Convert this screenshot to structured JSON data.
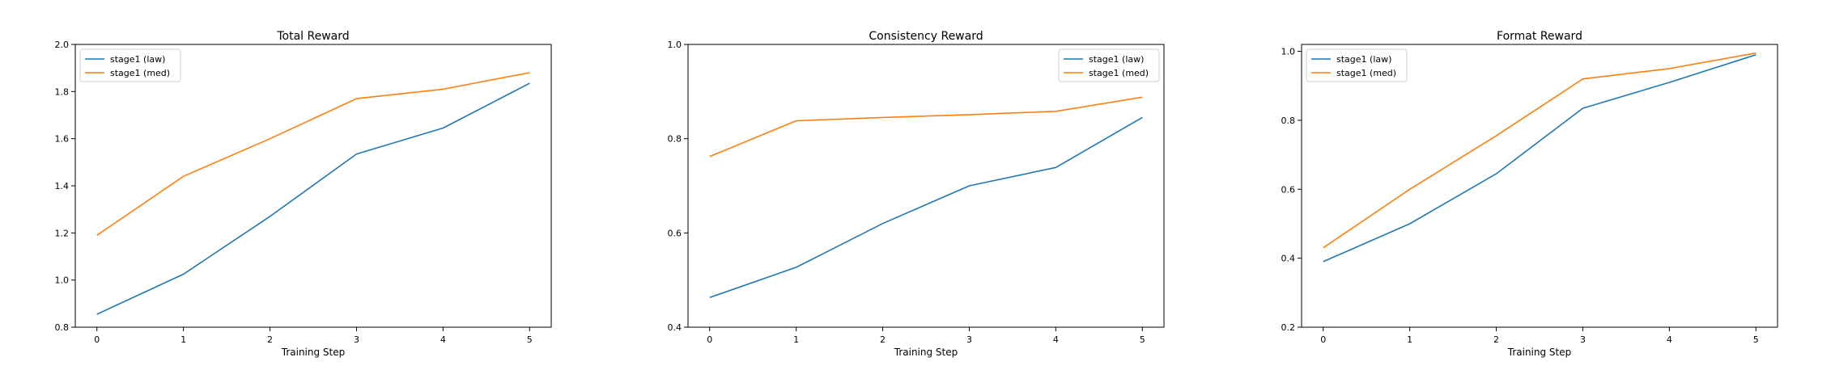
{
  "chart_data": [
    {
      "type": "line",
      "title": "Total Reward",
      "xlabel": "Training Step",
      "ylabel": "",
      "x": [
        0,
        1,
        2,
        3,
        4,
        5
      ],
      "xticks": [
        "0",
        "1",
        "2",
        "3",
        "4",
        "5"
      ],
      "xlim": [
        -0.25,
        5.25
      ],
      "ylim": [
        0.8,
        2.0
      ],
      "yticks": [
        "0.8",
        "1.0",
        "1.2",
        "1.4",
        "1.6",
        "1.8",
        "2.0"
      ],
      "grid": false,
      "legend_position": "top-left",
      "series": [
        {
          "name": "stage1 (law)",
          "color": "#1f77b4",
          "values": [
            0.855,
            1.025,
            1.27,
            1.535,
            1.645,
            1.835
          ]
        },
        {
          "name": "stage1 (med)",
          "color": "#ff7f0e",
          "values": [
            1.19,
            1.44,
            1.6,
            1.77,
            1.81,
            1.88
          ]
        }
      ]
    },
    {
      "type": "line",
      "title": "Consistency Reward",
      "xlabel": "Training Step",
      "ylabel": "",
      "x": [
        0,
        1,
        2,
        3,
        4,
        5
      ],
      "xticks": [
        "0",
        "1",
        "2",
        "3",
        "4",
        "5"
      ],
      "xlim": [
        -0.25,
        5.25
      ],
      "ylim": [
        0.4,
        1.0
      ],
      "yticks": [
        "0.4",
        "0.6",
        "0.8",
        "1.0"
      ],
      "grid": false,
      "legend_position": "top-right",
      "series": [
        {
          "name": "stage1 (law)",
          "color": "#1f77b4",
          "values": [
            0.463,
            0.527,
            0.62,
            0.7,
            0.739,
            0.845
          ]
        },
        {
          "name": "stage1 (med)",
          "color": "#ff7f0e",
          "values": [
            0.762,
            0.838,
            0.845,
            0.851,
            0.858,
            0.888
          ]
        }
      ]
    },
    {
      "type": "line",
      "title": "Format Reward",
      "xlabel": "Training Step",
      "ylabel": "",
      "x": [
        0,
        1,
        2,
        3,
        4,
        5
      ],
      "xticks": [
        "0",
        "1",
        "2",
        "3",
        "4",
        "5"
      ],
      "xlim": [
        -0.25,
        5.25
      ],
      "ylim": [
        0.2,
        1.02
      ],
      "yticks": [
        "0.2",
        "0.4",
        "0.6",
        "0.8",
        "1.0"
      ],
      "grid": false,
      "legend_position": "top-left",
      "series": [
        {
          "name": "stage1 (law)",
          "color": "#1f77b4",
          "values": [
            0.39,
            0.5,
            0.645,
            0.835,
            0.91,
            0.99
          ]
        },
        {
          "name": "stage1 (med)",
          "color": "#ff7f0e",
          "values": [
            0.43,
            0.6,
            0.755,
            0.92,
            0.95,
            0.995
          ]
        }
      ]
    }
  ]
}
